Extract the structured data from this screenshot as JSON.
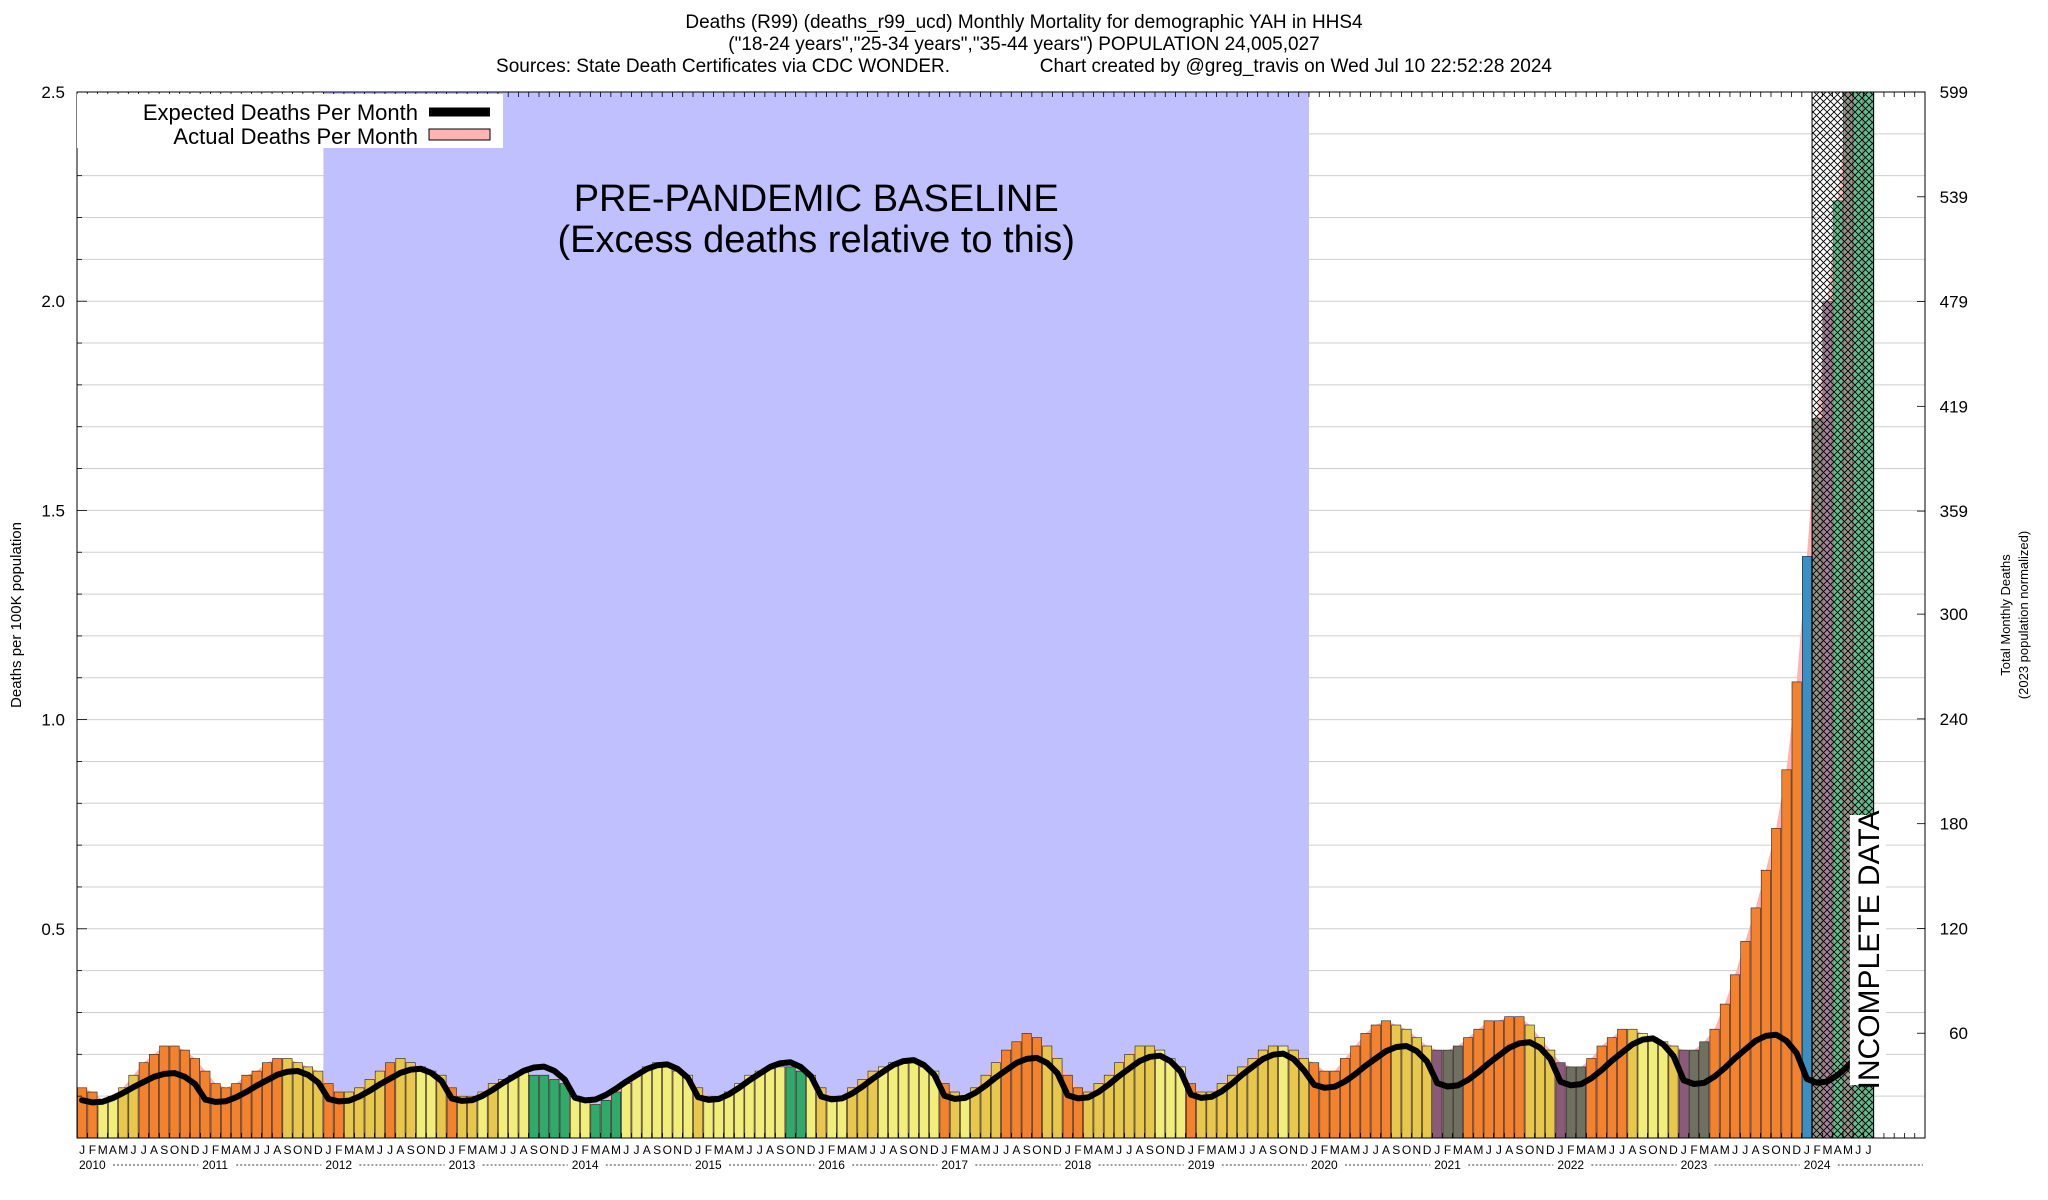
{
  "title": {
    "line1": "Deaths (R99) (deaths_r99_ucd) Monthly Mortality for demographic YAH in HHS4",
    "line2": "(\"18-24 years\",\"25-34 years\",\"35-44 years\") POPULATION 24,005,027",
    "line3": "Sources: State Death Certificates via CDC WONDER.                 Chart created by @greg_travis on Wed Jul 10 22:52:28 2024"
  },
  "legend": {
    "expected_label": "Expected Deaths Per Month",
    "actual_label": "Actual Deaths Per Month"
  },
  "annotations": {
    "baseline_line1": "PRE-PANDEMIC BASELINE",
    "baseline_line2": "(Excess deaths relative to this)",
    "incomplete": "INCOMPLETE DATA"
  },
  "colors": {
    "baseline_region": "#c0c0ff",
    "expected_line": "#000000",
    "actual_area": "#ffb3b3",
    "bar_high": "#f4822c",
    "bar_mid": "#e8c84a",
    "bar_low": "#3a8fc4",
    "bar_green": "#2faa6a",
    "bar_yellow": "#f2ee7a",
    "bar_mauve": "#8a5a7a",
    "bar_olive": "#707060"
  },
  "chart_data": {
    "type": "bar",
    "ylabel": "Deaths per 100K population",
    "y2label_line1": "Total Monthly Deaths",
    "y2label_line2": "(2023 population normalized)",
    "ylim": [
      0,
      2.5
    ],
    "y_ticks": [
      "0.5",
      "1.0",
      "1.5",
      "2.0",
      "2.5"
    ],
    "y_tick_values": [
      0.5,
      1.0,
      1.5,
      2.0,
      2.5
    ],
    "y2_ticks": [
      "60",
      "120",
      "180",
      "240",
      "300",
      "359",
      "419",
      "479",
      "539",
      "599"
    ],
    "y2_tick_values": [
      60,
      120,
      180,
      240,
      300,
      359,
      419,
      479,
      539,
      599
    ],
    "baseline_range": [
      "2012-01",
      "2019-12"
    ],
    "incomplete_range": [
      "2024-02",
      "2024-07"
    ],
    "month_letters": [
      "J",
      "F",
      "M",
      "A",
      "M",
      "J",
      "J",
      "A",
      "S",
      "O",
      "N",
      "D"
    ],
    "years": [
      "2010",
      "2011",
      "2012",
      "2013",
      "2014",
      "2015",
      "2016",
      "2017",
      "2018",
      "2019",
      "2020",
      "2021",
      "2022",
      "2023",
      "2024"
    ],
    "start": "2010-01",
    "actual": [
      0.12,
      0.11,
      0.09,
      0.1,
      0.12,
      0.15,
      0.18,
      0.2,
      0.22,
      0.22,
      0.21,
      0.19,
      0.16,
      0.13,
      0.12,
      0.13,
      0.15,
      0.16,
      0.18,
      0.19,
      0.19,
      0.18,
      0.17,
      0.16,
      0.13,
      0.11,
      0.11,
      0.12,
      0.14,
      0.16,
      0.18,
      0.19,
      0.18,
      0.17,
      0.16,
      0.15,
      0.12,
      0.1,
      0.1,
      0.11,
      0.13,
      0.14,
      0.15,
      0.16,
      0.15,
      0.15,
      0.14,
      0.13,
      0.1,
      0.09,
      0.08,
      0.09,
      0.11,
      0.13,
      0.15,
      0.17,
      0.18,
      0.17,
      0.16,
      0.15,
      0.12,
      0.1,
      0.1,
      0.11,
      0.13,
      0.15,
      0.16,
      0.17,
      0.17,
      0.17,
      0.16,
      0.15,
      0.12,
      0.1,
      0.1,
      0.12,
      0.14,
      0.16,
      0.17,
      0.18,
      0.18,
      0.18,
      0.17,
      0.16,
      0.13,
      0.11,
      0.1,
      0.12,
      0.15,
      0.18,
      0.21,
      0.23,
      0.25,
      0.24,
      0.22,
      0.19,
      0.15,
      0.12,
      0.11,
      0.13,
      0.15,
      0.18,
      0.2,
      0.22,
      0.22,
      0.21,
      0.19,
      0.17,
      0.13,
      0.11,
      0.11,
      0.13,
      0.15,
      0.17,
      0.19,
      0.21,
      0.22,
      0.22,
      0.21,
      0.19,
      0.18,
      0.16,
      0.16,
      0.19,
      0.22,
      0.25,
      0.27,
      0.28,
      0.27,
      0.26,
      0.24,
      0.22,
      0.21,
      0.21,
      0.22,
      0.24,
      0.26,
      0.28,
      0.28,
      0.29,
      0.29,
      0.27,
      0.24,
      0.21,
      0.18,
      0.17,
      0.17,
      0.19,
      0.22,
      0.24,
      0.26,
      0.26,
      0.25,
      0.24,
      0.23,
      0.22,
      0.21,
      0.21,
      0.23,
      0.26,
      0.32,
      0.39,
      0.47,
      0.55,
      0.64,
      0.74,
      0.88,
      1.09,
      1.39,
      1.72,
      2.0,
      2.24,
      2.5,
      2.5,
      2.5
    ]
  }
}
